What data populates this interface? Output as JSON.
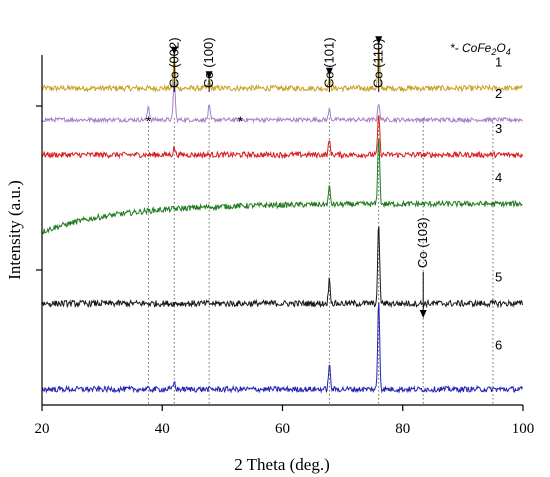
{
  "chart_data": {
    "type": "line",
    "xlabel": "2 Theta (deg.)",
    "ylabel": "Intensity (a.u.)",
    "xlim": [
      20,
      100
    ],
    "xticks": [
      20,
      40,
      60,
      80,
      100
    ],
    "y_units": "arbitrary",
    "legend_note": {
      "prefix": "*- ",
      "formula_base": "CoFe",
      "sub1": "2",
      "mid": "O",
      "sub2": "4"
    },
    "reference_lines_x": [
      37.7,
      42.0,
      47.8,
      67.8,
      76.0,
      83.4,
      95.0
    ],
    "peak_labels": [
      {
        "text": "Co (002)",
        "x": 42.0,
        "arrow": true
      },
      {
        "text": "Co (100)",
        "x": 47.8,
        "arrow": true
      },
      {
        "text": "Co (101)",
        "x": 67.8,
        "arrow": true
      },
      {
        "text": "Co (110)",
        "x": 76.0,
        "arrow": true
      },
      {
        "text": "Co (103)",
        "x": 83.4,
        "arrow": true
      }
    ],
    "stars": [
      {
        "text": "*",
        "x": 37.7
      },
      {
        "text": "*",
        "x": 53.0
      }
    ],
    "series": [
      {
        "label": "1",
        "color": "#c9a227",
        "baseline": 0.905,
        "noise": 0.008,
        "peaks": [
          {
            "x": 42.0,
            "h": 0.09
          },
          {
            "x": 47.8,
            "h": 0.02
          },
          {
            "x": 67.8,
            "h": 0.03
          },
          {
            "x": 76.0,
            "h": 0.12
          }
        ]
      },
      {
        "label": "2",
        "color": "#a57fc9",
        "baseline": 0.815,
        "noise": 0.006,
        "peaks": [
          {
            "x": 37.7,
            "h": 0.04
          },
          {
            "x": 42.0,
            "h": 0.12
          },
          {
            "x": 47.8,
            "h": 0.04
          },
          {
            "x": 67.8,
            "h": 0.03
          },
          {
            "x": 76.0,
            "h": 0.05
          }
        ]
      },
      {
        "label": "3",
        "color": "#d91c1c",
        "baseline": 0.715,
        "noise": 0.008,
        "peaks": [
          {
            "x": 42.0,
            "h": 0.02
          },
          {
            "x": 67.8,
            "h": 0.04
          },
          {
            "x": 76.0,
            "h": 0.12
          }
        ]
      },
      {
        "label": "4",
        "color": "#1f7a1f",
        "baseline": 0.575,
        "noise": 0.008,
        "rise": 0.08,
        "peaks": [
          {
            "x": 67.8,
            "h": 0.05
          },
          {
            "x": 76.0,
            "h": 0.2
          }
        ]
      },
      {
        "label": "5",
        "color": "#1a1a1a",
        "baseline": 0.29,
        "noise": 0.009,
        "peaks": [
          {
            "x": 67.8,
            "h": 0.07
          },
          {
            "x": 76.0,
            "h": 0.23
          }
        ]
      },
      {
        "label": "6",
        "color": "#2323b4",
        "baseline": 0.045,
        "noise": 0.008,
        "peaks": [
          {
            "x": 42.0,
            "h": 0.02
          },
          {
            "x": 67.8,
            "h": 0.07
          },
          {
            "x": 76.0,
            "h": 0.26
          }
        ]
      }
    ]
  }
}
